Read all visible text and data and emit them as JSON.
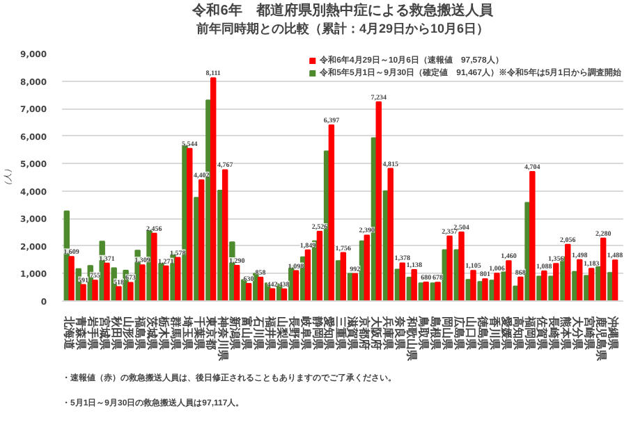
{
  "chart_data": {
    "type": "bar",
    "title": "令和6年　都道府県別熱中症による救急搬送人員",
    "subtitle": "前年同時期との比較（累計：4月29日から10月6日）",
    "ylabel": "（人）",
    "categories": [
      "北海道",
      "青森県",
      "岩手県",
      "宮城県",
      "秋田県",
      "山形県",
      "福島県",
      "茨城県",
      "栃木県",
      "群馬県",
      "埼玉県",
      "千葉県",
      "東京都",
      "神奈川県",
      "新潟県",
      "富山県",
      "石川県",
      "福井県",
      "山梨県",
      "長野県",
      "岐阜県",
      "静岡県",
      "愛知県",
      "三重県",
      "滋賀県",
      "京都府",
      "大阪府",
      "兵庫県",
      "奈良県",
      "和歌山県",
      "鳥取県",
      "島根県",
      "岡山県",
      "広島県",
      "山口県",
      "徳島県",
      "香川県",
      "愛媛県",
      "高知県",
      "福岡県",
      "佐賀県",
      "長崎県",
      "熊本県",
      "大分県",
      "宮崎県",
      "鹿児島県",
      "沖縄県"
    ],
    "series": [
      {
        "name": "令和5年5月1日～9月30日（確定値　91,467人）※令和5年は5月1日から調査開始",
        "color": "#4e8a2e",
        "values": [
          3270,
          1170,
          1280,
          2170,
          1200,
          1110,
          1840,
          2600,
          1380,
          1770,
          5710,
          3760,
          7300,
          4020,
          2140,
          770,
          1000,
          650,
          620,
          1290,
          1600,
          2180,
          5450,
          1460,
          1000,
          2180,
          5930,
          4000,
          1150,
          860,
          650,
          650,
          1860,
          1860,
          780,
          700,
          750,
          1050,
          540,
          3580,
          900,
          900,
          1600,
          1070,
          920,
          1240,
          1030
        ]
      },
      {
        "name": "令和6年4月29日～10月6日（速報値　97,578人）",
        "color": "#ff0000",
        "values": [
          1609,
          591,
          755,
          1371,
          518,
          673,
          1309,
          2456,
          1271,
          1578,
          5544,
          4402,
          8111,
          4767,
          1290,
          630,
          858,
          442,
          438,
          1098,
          1849,
          2526,
          6397,
          1756,
          992,
          2390,
          7234,
          4815,
          1378,
          1138,
          680,
          678,
          2357,
          2504,
          1105,
          801,
          1006,
          1460,
          868,
          4704,
          1088,
          1356,
          2056,
          1498,
          1183,
          2280,
          1488
        ],
        "value_labels": [
          "1,609",
          "591",
          "755",
          "1,371",
          "518",
          "673",
          "1,309",
          "2,456",
          "1,271",
          "1,578",
          "5,544",
          "4,402",
          "8,111",
          "4,767",
          "1,290",
          "630",
          "858",
          "442",
          "438",
          "1,098",
          "1,849",
          "2,526",
          "6,397",
          "1,756",
          "992",
          "2,390",
          "7,234",
          "4,815",
          "1,378",
          "1,138",
          "680",
          "678",
          "2,357",
          "2,504",
          "1,105",
          "801",
          "1,006",
          "1,460",
          "868",
          "4,704",
          "1,088",
          "1,356",
          "2,056",
          "1,498",
          "1,183",
          "2,280",
          "1,488"
        ]
      }
    ],
    "ylim": [
      0,
      9000
    ],
    "yticks": [
      {
        "value": 0,
        "label": "0"
      },
      {
        "value": 1000,
        "label": "1,000"
      },
      {
        "value": 2000,
        "label": "2,000"
      },
      {
        "value": 3000,
        "label": "3,000"
      },
      {
        "value": 4000,
        "label": "4,000"
      },
      {
        "value": 5000,
        "label": "5,000"
      },
      {
        "value": 6000,
        "label": "6,000"
      },
      {
        "value": 7000,
        "label": "7,000"
      },
      {
        "value": 8000,
        "label": "8,000"
      },
      {
        "value": 9000,
        "label": "9,000"
      }
    ],
    "grid": "y",
    "legend": "top right",
    "annotations": [
      "・速報値（赤）の救急搬送人員は、後日修正されることもありますのでご了承ください。",
      "・5月1日～9月30日の救急搬送人員は97,117人。"
    ]
  }
}
